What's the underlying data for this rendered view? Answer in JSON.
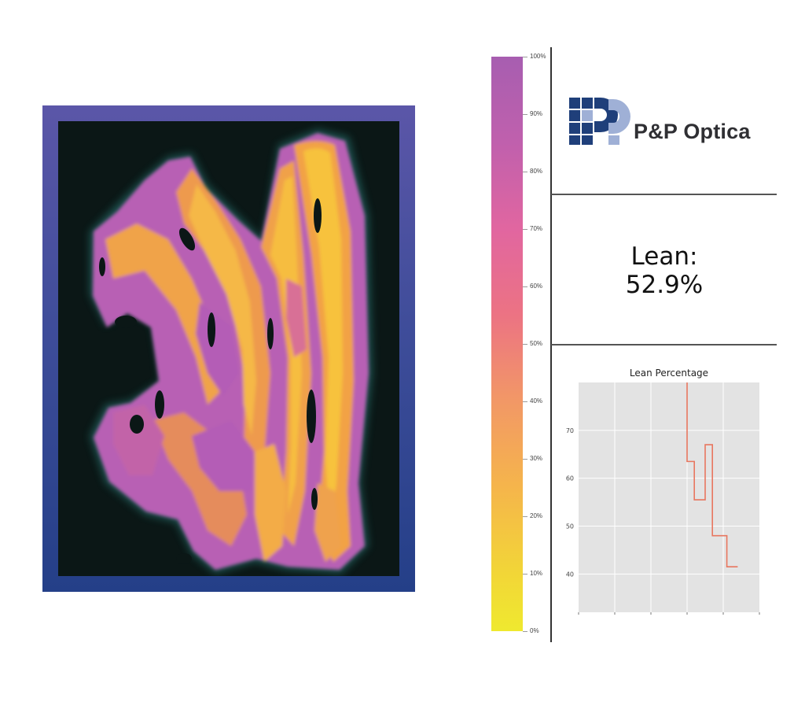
{
  "colorbar": {
    "labels": [
      "100%",
      "90%",
      "80%",
      "70%",
      "60%",
      "50%",
      "40%",
      "30%",
      "20%",
      "10%",
      "0%"
    ]
  },
  "brand": {
    "name": "P&P Optica",
    "color": "#1f3f7a",
    "accent": "#9fb0d6"
  },
  "readout": {
    "label": "Lean:",
    "value": "52.9%"
  },
  "chart_data": {
    "type": "line",
    "title": "Lean Percentage",
    "xlabel": "",
    "ylabel": "",
    "ylim": [
      32,
      80
    ],
    "yticks": [
      40,
      50,
      60,
      70
    ],
    "grid": true,
    "series": [
      {
        "color": "#e8765f",
        "points": [
          [
            3.0,
            80
          ],
          [
            3.0,
            63.5
          ],
          [
            3.2,
            63.5
          ],
          [
            3.2,
            55.5
          ],
          [
            3.5,
            55.5
          ],
          [
            3.5,
            67
          ],
          [
            3.7,
            67
          ],
          [
            3.7,
            48
          ],
          [
            4.1,
            48
          ],
          [
            4.1,
            41.5
          ],
          [
            4.4,
            41.5
          ]
        ]
      }
    ],
    "xlim": [
      0,
      5
    ]
  }
}
